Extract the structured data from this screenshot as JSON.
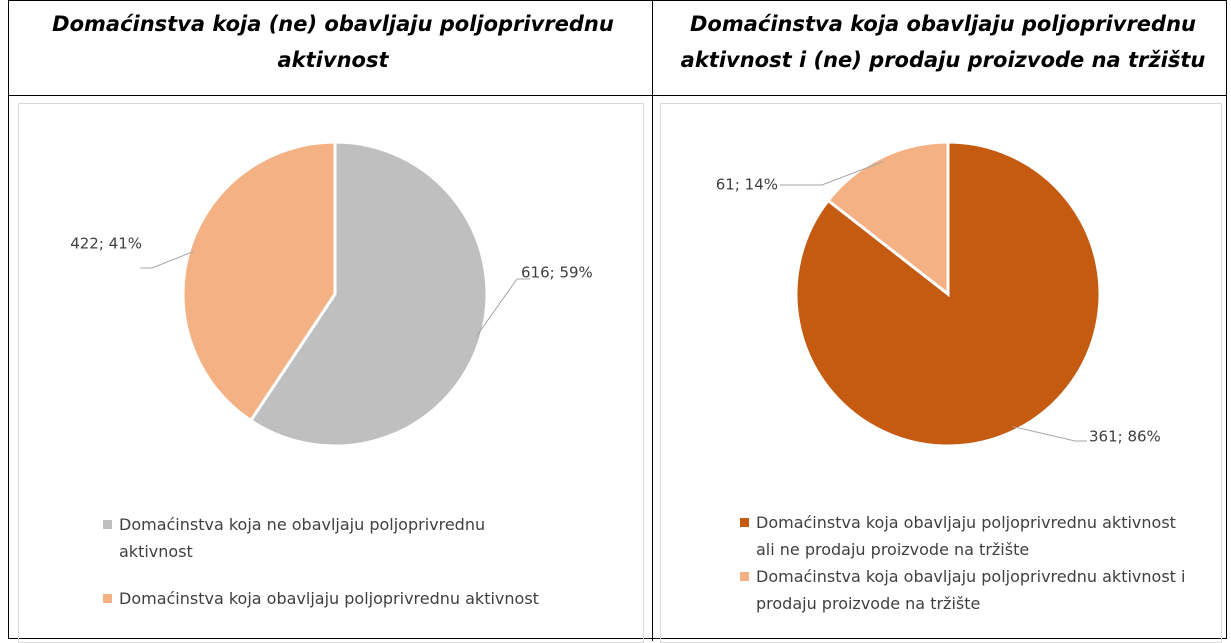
{
  "chart_data": [
    {
      "type": "pie",
      "title": "Domaćinstva koja (ne) obavljaju poljoprivrednu aktivnost",
      "categories": [
        "Domaćinstva koja ne obavljaju poljoprivrednu aktivnost",
        "Domaćinstva koja obavljaju poljoprivrednu aktivnost"
      ],
      "values": [
        616,
        422
      ],
      "value_labels": [
        "616; 59%",
        "422; 41%"
      ],
      "colors": [
        "#bfbfbf",
        "#f4b183"
      ],
      "legend": "bottom"
    },
    {
      "type": "pie",
      "title": "Domaćinstva koja obavljaju poljoprivrednu aktivnost i (ne) prodaju proizvode na tržištu",
      "categories": [
        "Domaćinstva koja obavljaju poljoprivrednu aktivnost ali ne prodaju proizvode na tržište",
        "Domaćinstva koja obavljaju poljoprivrednu aktivnost i prodaju proizvode na tržište"
      ],
      "values": [
        361,
        61
      ],
      "value_labels": [
        "361; 86%",
        "61; 14%"
      ],
      "colors": [
        "#c55a11",
        "#f4b183"
      ],
      "legend": "bottom"
    }
  ]
}
